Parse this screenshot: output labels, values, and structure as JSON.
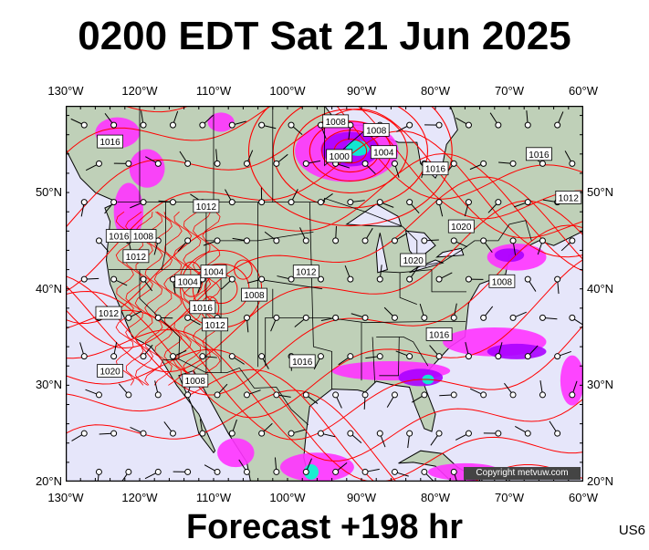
{
  "header": {
    "title": "0200 EDT Sat 21 Jun 2025"
  },
  "footer": {
    "forecast": "Forecast +198 hr",
    "region_code": "US6"
  },
  "copyright": "Copyright metvuw.com",
  "axes": {
    "lon_labels": [
      "130°W",
      "120°W",
      "110°W",
      "100°W",
      "90°W",
      "80°W",
      "70°W",
      "60°W"
    ],
    "lon_values": [
      -130,
      -120,
      -110,
      -100,
      -90,
      -80,
      -70,
      -60
    ],
    "lat_labels": [
      "50°N",
      "40°N",
      "30°N",
      "20°N"
    ],
    "lat_values": [
      50,
      40,
      30,
      20
    ],
    "lon_range": [
      -130,
      -60
    ],
    "lat_range": [
      20,
      59
    ]
  },
  "colors": {
    "ocean": "#e6e6fa",
    "land": "#bfd0b8",
    "isobar": "#ff0000",
    "precip_light": "#ff33ff",
    "precip_mid": "#aa00ff",
    "precip_heavy": "#00ffcc"
  },
  "isobar_labels": [
    {
      "text": "1008",
      "lon": -93.5,
      "lat": 57.4
    },
    {
      "text": "1008",
      "lon": -88,
      "lat": 56.5
    },
    {
      "text": "1004",
      "lon": -87,
      "lat": 54.2
    },
    {
      "text": "1000",
      "lon": -93,
      "lat": 53.8
    },
    {
      "text": "1016",
      "lon": -124,
      "lat": 55.3
    },
    {
      "text": "1016",
      "lon": -80,
      "lat": 52.5
    },
    {
      "text": "1016",
      "lon": -66,
      "lat": 54
    },
    {
      "text": "1012",
      "lon": -62,
      "lat": 49.5
    },
    {
      "text": "1012",
      "lon": -111,
      "lat": 48.6
    },
    {
      "text": "1020",
      "lon": -76.5,
      "lat": 46.5
    },
    {
      "text": "1020",
      "lon": -83,
      "lat": 43
    },
    {
      "text": "1012",
      "lon": -97.5,
      "lat": 41.8
    },
    {
      "text": "1016",
      "lon": -122.8,
      "lat": 45.5
    },
    {
      "text": "1008",
      "lon": -119.5,
      "lat": 45.5
    },
    {
      "text": "1012",
      "lon": -120.5,
      "lat": 43.4
    },
    {
      "text": "1004",
      "lon": -110,
      "lat": 41.8
    },
    {
      "text": "1004",
      "lon": -113.5,
      "lat": 40.8
    },
    {
      "text": "1008",
      "lon": -104.5,
      "lat": 39.4
    },
    {
      "text": "1016",
      "lon": -111.5,
      "lat": 38.1
    },
    {
      "text": "1012",
      "lon": -109.8,
      "lat": 36.3
    },
    {
      "text": "1012",
      "lon": -124.2,
      "lat": 37.5
    },
    {
      "text": "1008",
      "lon": -71,
      "lat": 40.8
    },
    {
      "text": "1016",
      "lon": -79.5,
      "lat": 35.3
    },
    {
      "text": "1016",
      "lon": -98,
      "lat": 32.5
    },
    {
      "text": "1020",
      "lon": -124,
      "lat": 31.5
    },
    {
      "text": "1008",
      "lon": -112.5,
      "lat": 30.5
    }
  ],
  "pressure_centers": [
    {
      "kind": "low",
      "value": "1000",
      "lon": -91.5,
      "lat": 54.3
    }
  ],
  "precip_areas": [
    {
      "level": "light",
      "lon": -92,
      "lat": 54.3,
      "rx": 7,
      "ry": 3.2
    },
    {
      "level": "mid",
      "lon": -91.5,
      "lat": 54.5,
      "rx": 4,
      "ry": 1.8
    },
    {
      "level": "heavy",
      "lon": -90.5,
      "lat": 54.6,
      "rx": 1.6,
      "ry": 0.8
    },
    {
      "level": "light",
      "lon": -123,
      "lat": 56.2,
      "rx": 3,
      "ry": 1.6
    },
    {
      "level": "light",
      "lon": -119,
      "lat": 52.5,
      "rx": 2.4,
      "ry": 2
    },
    {
      "level": "light",
      "lon": -121.5,
      "lat": 48,
      "rx": 2,
      "ry": 3
    },
    {
      "level": "light",
      "lon": -109,
      "lat": 57.3,
      "rx": 1.8,
      "ry": 1
    },
    {
      "level": "light",
      "lon": -69,
      "lat": 43.3,
      "rx": 4,
      "ry": 1.4
    },
    {
      "level": "mid",
      "lon": -70,
      "lat": 43.5,
      "rx": 2,
      "ry": 0.7
    },
    {
      "level": "light",
      "lon": -86,
      "lat": 31.5,
      "rx": 8,
      "ry": 1
    },
    {
      "level": "mid",
      "lon": -82,
      "lat": 30.8,
      "rx": 3,
      "ry": 0.9
    },
    {
      "level": "heavy",
      "lon": -81,
      "lat": 30.6,
      "rx": 0.8,
      "ry": 0.5
    },
    {
      "level": "light",
      "lon": -72,
      "lat": 34.5,
      "rx": 7,
      "ry": 1.5
    },
    {
      "level": "mid",
      "lon": -69,
      "lat": 33.5,
      "rx": 4,
      "ry": 0.8
    },
    {
      "level": "light",
      "lon": -61.5,
      "lat": 30.5,
      "rx": 1.6,
      "ry": 2.6
    },
    {
      "level": "light",
      "lon": -96,
      "lat": 21.5,
      "rx": 5,
      "ry": 1.5
    },
    {
      "level": "heavy",
      "lon": -96.8,
      "lat": 21,
      "rx": 1,
      "ry": 0.8
    },
    {
      "level": "light",
      "lon": -107,
      "lat": 23,
      "rx": 2.5,
      "ry": 1.5
    },
    {
      "level": "light",
      "lon": -76,
      "lat": 21,
      "rx": 5,
      "ry": 0.9
    }
  ]
}
